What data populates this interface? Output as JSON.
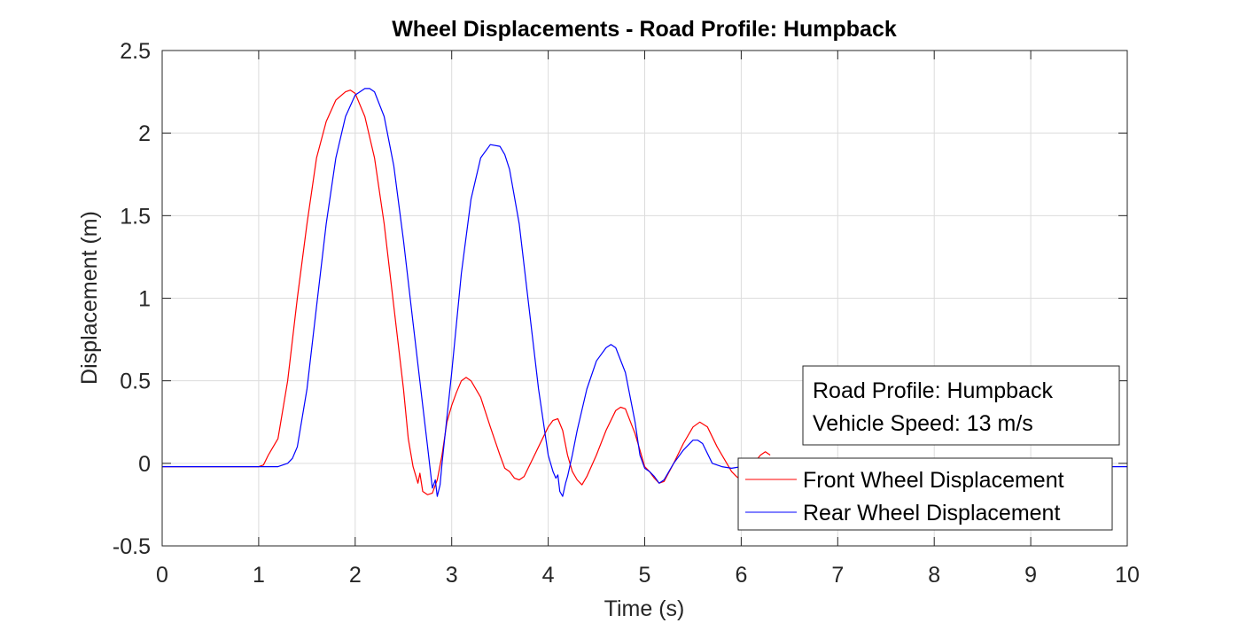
{
  "chart_data": {
    "type": "line",
    "title": "Wheel Displacements - Road Profile: Humpback",
    "xlabel": "Time (s)",
    "ylabel": "Displacement (m)",
    "xlim": [
      0,
      10
    ],
    "ylim": [
      -0.5,
      2.5
    ],
    "xticks": [
      0,
      1,
      2,
      3,
      4,
      5,
      6,
      7,
      8,
      9,
      10
    ],
    "xtick_labels": [
      "0",
      "1",
      "2",
      "3",
      "4",
      "5",
      "6",
      "7",
      "8",
      "9",
      "10"
    ],
    "yticks": [
      -0.5,
      0,
      0.5,
      1,
      1.5,
      2,
      2.5
    ],
    "ytick_labels": [
      "-0.5",
      "0",
      "0.5",
      "1",
      "1.5",
      "2",
      "2.5"
    ],
    "grid": true,
    "legend_position": "bottom-right",
    "annotation": {
      "lines": [
        "Road Profile: Humpback",
        "Vehicle Speed: 13 m/s"
      ]
    },
    "series": [
      {
        "name": "Front Wheel Displacement",
        "color": "#ff0000",
        "x": [
          0,
          1.0,
          1.05,
          1.1,
          1.2,
          1.3,
          1.4,
          1.5,
          1.6,
          1.7,
          1.8,
          1.9,
          1.95,
          2.0,
          2.1,
          2.2,
          2.3,
          2.4,
          2.5,
          2.55,
          2.6,
          2.63,
          2.65,
          2.67,
          2.7,
          2.75,
          2.8,
          2.85,
          2.9,
          2.95,
          3.0,
          3.05,
          3.1,
          3.15,
          3.2,
          3.3,
          3.4,
          3.5,
          3.55,
          3.6,
          3.65,
          3.7,
          3.75,
          3.8,
          3.9,
          4.0,
          4.05,
          4.1,
          4.15,
          4.2,
          4.25,
          4.3,
          4.35,
          4.4,
          4.5,
          4.6,
          4.7,
          4.75,
          4.8,
          4.9,
          4.95,
          5.0,
          5.05,
          5.1,
          5.15,
          5.2,
          5.3,
          5.4,
          5.5,
          5.57,
          5.65,
          5.75,
          5.85,
          5.9,
          5.95,
          6.0,
          6.1,
          6.2,
          6.25,
          6.3
        ],
        "y": [
          -0.02,
          -0.02,
          -0.01,
          0.05,
          0.15,
          0.5,
          1.0,
          1.45,
          1.85,
          2.07,
          2.2,
          2.25,
          2.26,
          2.24,
          2.1,
          1.85,
          1.45,
          0.95,
          0.45,
          0.15,
          -0.02,
          -0.08,
          -0.12,
          -0.06,
          -0.17,
          -0.19,
          -0.18,
          -0.1,
          0.05,
          0.25,
          0.35,
          0.43,
          0.5,
          0.52,
          0.5,
          0.4,
          0.22,
          0.05,
          -0.03,
          -0.05,
          -0.09,
          -0.1,
          -0.08,
          -0.02,
          0.1,
          0.22,
          0.26,
          0.27,
          0.2,
          0.05,
          -0.05,
          -0.1,
          -0.13,
          -0.08,
          0.05,
          0.2,
          0.32,
          0.34,
          0.33,
          0.18,
          0.08,
          -0.02,
          -0.05,
          -0.09,
          -0.12,
          -0.11,
          0.0,
          0.12,
          0.22,
          0.25,
          0.22,
          0.1,
          0.0,
          -0.05,
          -0.08,
          -0.1,
          -0.02,
          0.05,
          0.07,
          0.05
        ]
      },
      {
        "name": "Rear Wheel Displacement",
        "color": "#0000ff",
        "x": [
          0,
          1.2,
          1.25,
          1.3,
          1.35,
          1.4,
          1.5,
          1.6,
          1.7,
          1.8,
          1.9,
          2.0,
          2.1,
          2.15,
          2.2,
          2.3,
          2.4,
          2.5,
          2.6,
          2.7,
          2.75,
          2.78,
          2.8,
          2.83,
          2.85,
          2.88,
          2.9,
          3.0,
          3.1,
          3.2,
          3.3,
          3.4,
          3.5,
          3.55,
          3.6,
          3.7,
          3.8,
          3.9,
          4.0,
          4.05,
          4.08,
          4.1,
          4.12,
          4.15,
          4.18,
          4.2,
          4.25,
          4.3,
          4.4,
          4.5,
          4.6,
          4.65,
          4.7,
          4.8,
          4.9,
          4.95,
          5.0,
          5.05,
          5.1,
          5.15,
          5.2,
          5.3,
          5.4,
          5.5,
          5.55,
          5.6,
          5.7,
          5.8,
          5.9,
          6.0,
          6.2,
          7.0,
          8.0,
          9.0,
          10.0
        ],
        "y": [
          -0.02,
          -0.02,
          -0.01,
          0.0,
          0.03,
          0.1,
          0.45,
          0.95,
          1.45,
          1.85,
          2.1,
          2.23,
          2.27,
          2.27,
          2.25,
          2.1,
          1.8,
          1.35,
          0.85,
          0.35,
          0.1,
          -0.05,
          -0.15,
          -0.1,
          -0.2,
          -0.13,
          0.0,
          0.55,
          1.15,
          1.6,
          1.85,
          1.93,
          1.92,
          1.87,
          1.78,
          1.45,
          0.95,
          0.45,
          0.05,
          -0.05,
          -0.09,
          -0.07,
          -0.17,
          -0.2,
          -0.12,
          -0.08,
          0.05,
          0.2,
          0.45,
          0.62,
          0.7,
          0.72,
          0.7,
          0.55,
          0.25,
          0.05,
          -0.03,
          -0.05,
          -0.08,
          -0.12,
          -0.1,
          0.0,
          0.08,
          0.14,
          0.14,
          0.12,
          0.0,
          -0.02,
          -0.03,
          -0.02,
          -0.02,
          -0.02,
          -0.02,
          -0.02,
          -0.02
        ]
      }
    ]
  }
}
